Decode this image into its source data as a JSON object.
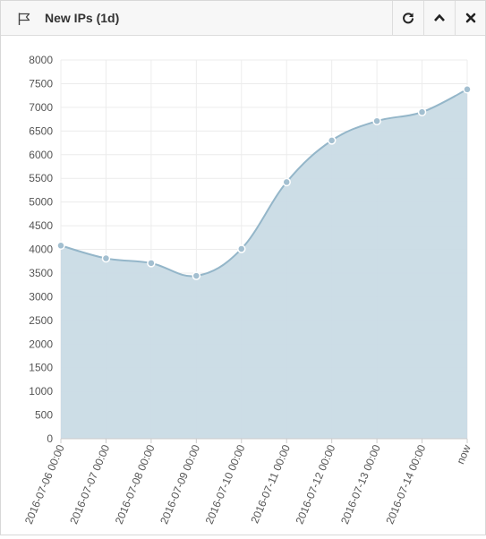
{
  "widget": {
    "title": "New IPs (1d)",
    "icons": {
      "title_icon": "flag-icon",
      "refresh": "refresh-icon",
      "collapse": "chevron-up-icon",
      "close": "close-icon"
    }
  },
  "chart_data": {
    "type": "area",
    "title": "",
    "xlabel": "",
    "ylabel": "",
    "categories": [
      "2016-07-06 00:00",
      "2016-07-07 00:00",
      "2016-07-08 00:00",
      "2016-07-09 00:00",
      "2016-07-10 00:00",
      "2016-07-11 00:00",
      "2016-07-12 00:00",
      "2016-07-13 00:00",
      "2016-07-14 00:00",
      "now"
    ],
    "values": [
      4080,
      3810,
      3710,
      3440,
      4010,
      5420,
      6300,
      6710,
      6900,
      7380
    ],
    "ylim": [
      0,
      8000
    ],
    "yticks": [
      0,
      500,
      1000,
      1500,
      2000,
      2500,
      3000,
      3500,
      4000,
      4500,
      5000,
      5500,
      6000,
      6500,
      7000,
      7500,
      8000
    ],
    "grid": true,
    "legend": "none",
    "colors": {
      "fill": "#c9dbe5",
      "line": "#94b6c9",
      "point": "#a3bfd0",
      "grid": "#ececec",
      "text": "#555555"
    }
  }
}
